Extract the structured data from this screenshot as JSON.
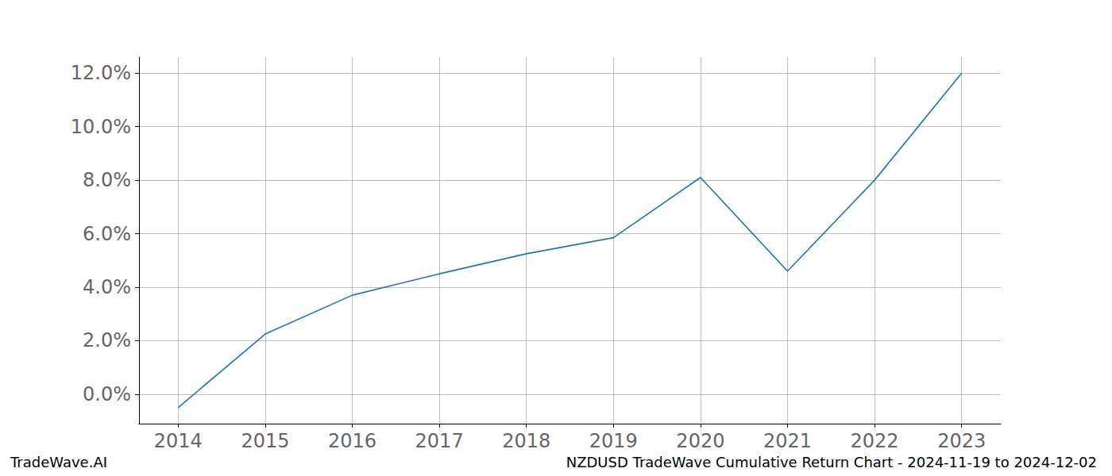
{
  "chart_data": {
    "type": "line",
    "title": "NZDUSD TradeWave Cumulative Return Chart - 2024-11-19 to 2024-12-02",
    "annotations": [
      "TradeWave.AI"
    ],
    "x": [
      2014,
      2015,
      2016,
      2017,
      2018,
      2019,
      2020,
      2021,
      2022,
      2023
    ],
    "values": [
      -0.5,
      2.25,
      3.7,
      4.5,
      5.25,
      5.85,
      8.1,
      4.6,
      8.0,
      12.0
    ],
    "color": "#1f77b4",
    "xlim": [
      2013.55,
      2023.45
    ],
    "xticks": [
      2014,
      2015,
      2016,
      2017,
      2018,
      2019,
      2020,
      2021,
      2022,
      2023
    ],
    "ylim": [
      -1.1,
      12.6
    ],
    "yticks": [
      {
        "value": 0,
        "label": "0.0%"
      },
      {
        "value": 2,
        "label": "2.0%"
      },
      {
        "value": 4,
        "label": "4.0%"
      },
      {
        "value": 6,
        "label": "6.0%"
      },
      {
        "value": 8,
        "label": "8.0%"
      },
      {
        "value": 10,
        "label": "10.0%"
      },
      {
        "value": 12,
        "label": "12.0%"
      }
    ],
    "grid": true
  }
}
